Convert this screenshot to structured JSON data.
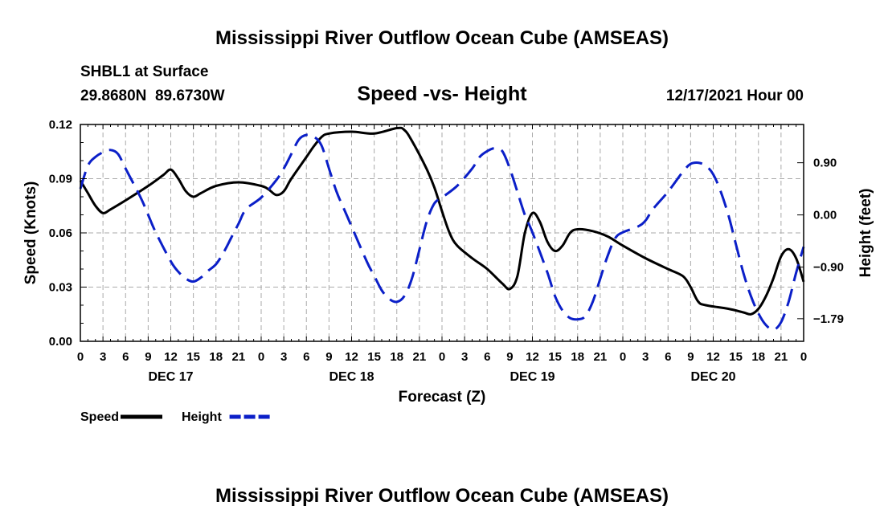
{
  "chart_data": {
    "type": "line",
    "title": "Mississippi River Outflow Ocean Cube (AMSEAS)",
    "footer_title": "Mississippi River Outflow Ocean Cube (AMSEAS)",
    "station": "SHBL1 at Surface",
    "coords": "29.8680N  89.6730W",
    "subtitle": "Speed -vs- Height",
    "date_label": "12/17/2021 Hour 00",
    "xlabel": "Forecast (Z)",
    "ylabel_left": "Speed (Knots)",
    "ylabel_right": "Height (feet)",
    "x_tick_labels": [
      "0",
      "3",
      "6",
      "9",
      "12",
      "15",
      "18",
      "21",
      "0",
      "3",
      "6",
      "9",
      "12",
      "15",
      "18",
      "21",
      "0",
      "3",
      "6",
      "9",
      "12",
      "15",
      "18",
      "21",
      "0",
      "3",
      "6",
      "9",
      "12",
      "15",
      "18",
      "21",
      "0"
    ],
    "day_labels": [
      {
        "label": "DEC 17",
        "hour": 12
      },
      {
        "label": "DEC 18",
        "hour": 36
      },
      {
        "label": "DEC 19",
        "hour": 60
      },
      {
        "label": "DEC 20",
        "hour": 84
      }
    ],
    "xlim": [
      0,
      96
    ],
    "ylim_left": [
      0,
      0.12
    ],
    "yticks_left": [
      "0.00",
      "0.03",
      "0.06",
      "0.09",
      "0.12"
    ],
    "ylim_right": [
      -2.18,
      1.56
    ],
    "yticks_right": [
      {
        "label": "0.90",
        "value": 0.9
      },
      {
        "label": "0.00",
        "value": 0.0
      },
      {
        "label": "−0.90",
        "value": -0.9
      },
      {
        "label": "−1.79",
        "value": -1.79
      }
    ],
    "series": [
      {
        "name": "Speed",
        "axis": "left",
        "color": "#000000",
        "dash": "solid",
        "points": [
          [
            0,
            0.089
          ],
          [
            1,
            0.082
          ],
          [
            2,
            0.075
          ],
          [
            3,
            0.071
          ],
          [
            4,
            0.073
          ],
          [
            6,
            0.078
          ],
          [
            9,
            0.086
          ],
          [
            11,
            0.092
          ],
          [
            12,
            0.095
          ],
          [
            13,
            0.09
          ],
          [
            14,
            0.083
          ],
          [
            15,
            0.08
          ],
          [
            16,
            0.082
          ],
          [
            18,
            0.086
          ],
          [
            21,
            0.088
          ],
          [
            24,
            0.086
          ],
          [
            25,
            0.084
          ],
          [
            26,
            0.081
          ],
          [
            27,
            0.083
          ],
          [
            28,
            0.09
          ],
          [
            30,
            0.102
          ],
          [
            31,
            0.108
          ],
          [
            32,
            0.113
          ],
          [
            33,
            0.115
          ],
          [
            36,
            0.116
          ],
          [
            39,
            0.115
          ],
          [
            42,
            0.118
          ],
          [
            43,
            0.117
          ],
          [
            44,
            0.111
          ],
          [
            46,
            0.095
          ],
          [
            47,
            0.085
          ],
          [
            48,
            0.072
          ],
          [
            49,
            0.06
          ],
          [
            50,
            0.053
          ],
          [
            52,
            0.046
          ],
          [
            54,
            0.04
          ],
          [
            56,
            0.032
          ],
          [
            57,
            0.029
          ],
          [
            58,
            0.036
          ],
          [
            59,
            0.06
          ],
          [
            60,
            0.071
          ],
          [
            61,
            0.066
          ],
          [
            62,
            0.055
          ],
          [
            63,
            0.05
          ],
          [
            64,
            0.053
          ],
          [
            65,
            0.06
          ],
          [
            66,
            0.062
          ],
          [
            68,
            0.061
          ],
          [
            70,
            0.058
          ],
          [
            72,
            0.053
          ],
          [
            75,
            0.046
          ],
          [
            78,
            0.04
          ],
          [
            80,
            0.036
          ],
          [
            81,
            0.03
          ],
          [
            82,
            0.022
          ],
          [
            83,
            0.02
          ],
          [
            86,
            0.018
          ],
          [
            88,
            0.016
          ],
          [
            89,
            0.015
          ],
          [
            90,
            0.018
          ],
          [
            91,
            0.025
          ],
          [
            92,
            0.035
          ],
          [
            93,
            0.047
          ],
          [
            94,
            0.051
          ],
          [
            95,
            0.046
          ],
          [
            96,
            0.033
          ]
        ]
      },
      {
        "name": "Height",
        "axis": "right",
        "color": "#0b1fc8",
        "dash": "dashed",
        "points": [
          [
            0,
            0.45
          ],
          [
            1,
            0.85
          ],
          [
            2,
            1.0
          ],
          [
            3,
            1.08
          ],
          [
            4,
            1.12
          ],
          [
            5,
            1.05
          ],
          [
            6,
            0.8
          ],
          [
            8,
            0.3
          ],
          [
            9,
            0.0
          ],
          [
            10,
            -0.3
          ],
          [
            12,
            -0.8
          ],
          [
            13,
            -0.98
          ],
          [
            14,
            -1.1
          ],
          [
            15,
            -1.15
          ],
          [
            16,
            -1.08
          ],
          [
            17,
            -0.96
          ],
          [
            18,
            -0.85
          ],
          [
            19,
            -0.65
          ],
          [
            20,
            -0.4
          ],
          [
            21,
            -0.15
          ],
          [
            22,
            0.1
          ],
          [
            24,
            0.3
          ],
          [
            26,
            0.6
          ],
          [
            27,
            0.8
          ],
          [
            28,
            1.05
          ],
          [
            29,
            1.3
          ],
          [
            30,
            1.38
          ],
          [
            31,
            1.35
          ],
          [
            32,
            1.2
          ],
          [
            33,
            0.8
          ],
          [
            34,
            0.4
          ],
          [
            35,
            0.1
          ],
          [
            36,
            -0.2
          ],
          [
            38,
            -0.8
          ],
          [
            39,
            -1.05
          ],
          [
            40,
            -1.3
          ],
          [
            41,
            -1.45
          ],
          [
            42,
            -1.5
          ],
          [
            43,
            -1.4
          ],
          [
            44,
            -1.1
          ],
          [
            45,
            -0.6
          ],
          [
            46,
            -0.1
          ],
          [
            47,
            0.2
          ],
          [
            48,
            0.3
          ],
          [
            50,
            0.5
          ],
          [
            52,
            0.8
          ],
          [
            53,
            1.0
          ],
          [
            54,
            1.1
          ],
          [
            55,
            1.15
          ],
          [
            56,
            1.1
          ],
          [
            57,
            0.8
          ],
          [
            58,
            0.4
          ],
          [
            59,
            0.0
          ],
          [
            60,
            -0.3
          ],
          [
            62,
            -1.0
          ],
          [
            63,
            -1.4
          ],
          [
            64,
            -1.65
          ],
          [
            65,
            -1.78
          ],
          [
            66,
            -1.8
          ],
          [
            67,
            -1.75
          ],
          [
            68,
            -1.5
          ],
          [
            69,
            -1.1
          ],
          [
            70,
            -0.7
          ],
          [
            71,
            -0.4
          ],
          [
            72,
            -0.3
          ],
          [
            74,
            -0.2
          ],
          [
            75,
            -0.1
          ],
          [
            76,
            0.1
          ],
          [
            78,
            0.4
          ],
          [
            80,
            0.75
          ],
          [
            81,
            0.88
          ],
          [
            82,
            0.9
          ],
          [
            83,
            0.85
          ],
          [
            84,
            0.7
          ],
          [
            85,
            0.4
          ],
          [
            86,
            0.0
          ],
          [
            87,
            -0.5
          ],
          [
            88,
            -1.0
          ],
          [
            89,
            -1.4
          ],
          [
            90,
            -1.7
          ],
          [
            91,
            -1.9
          ],
          [
            92,
            -1.98
          ],
          [
            93,
            -1.85
          ],
          [
            94,
            -1.5
          ],
          [
            95,
            -1.0
          ],
          [
            96,
            -0.55
          ]
        ]
      }
    ],
    "legend": [
      {
        "label": "Speed",
        "color": "#000000",
        "dash": "solid"
      },
      {
        "label": "Height",
        "color": "#0b1fc8",
        "dash": "dashed"
      }
    ],
    "grid": true,
    "legend_position": "bottom-left"
  }
}
